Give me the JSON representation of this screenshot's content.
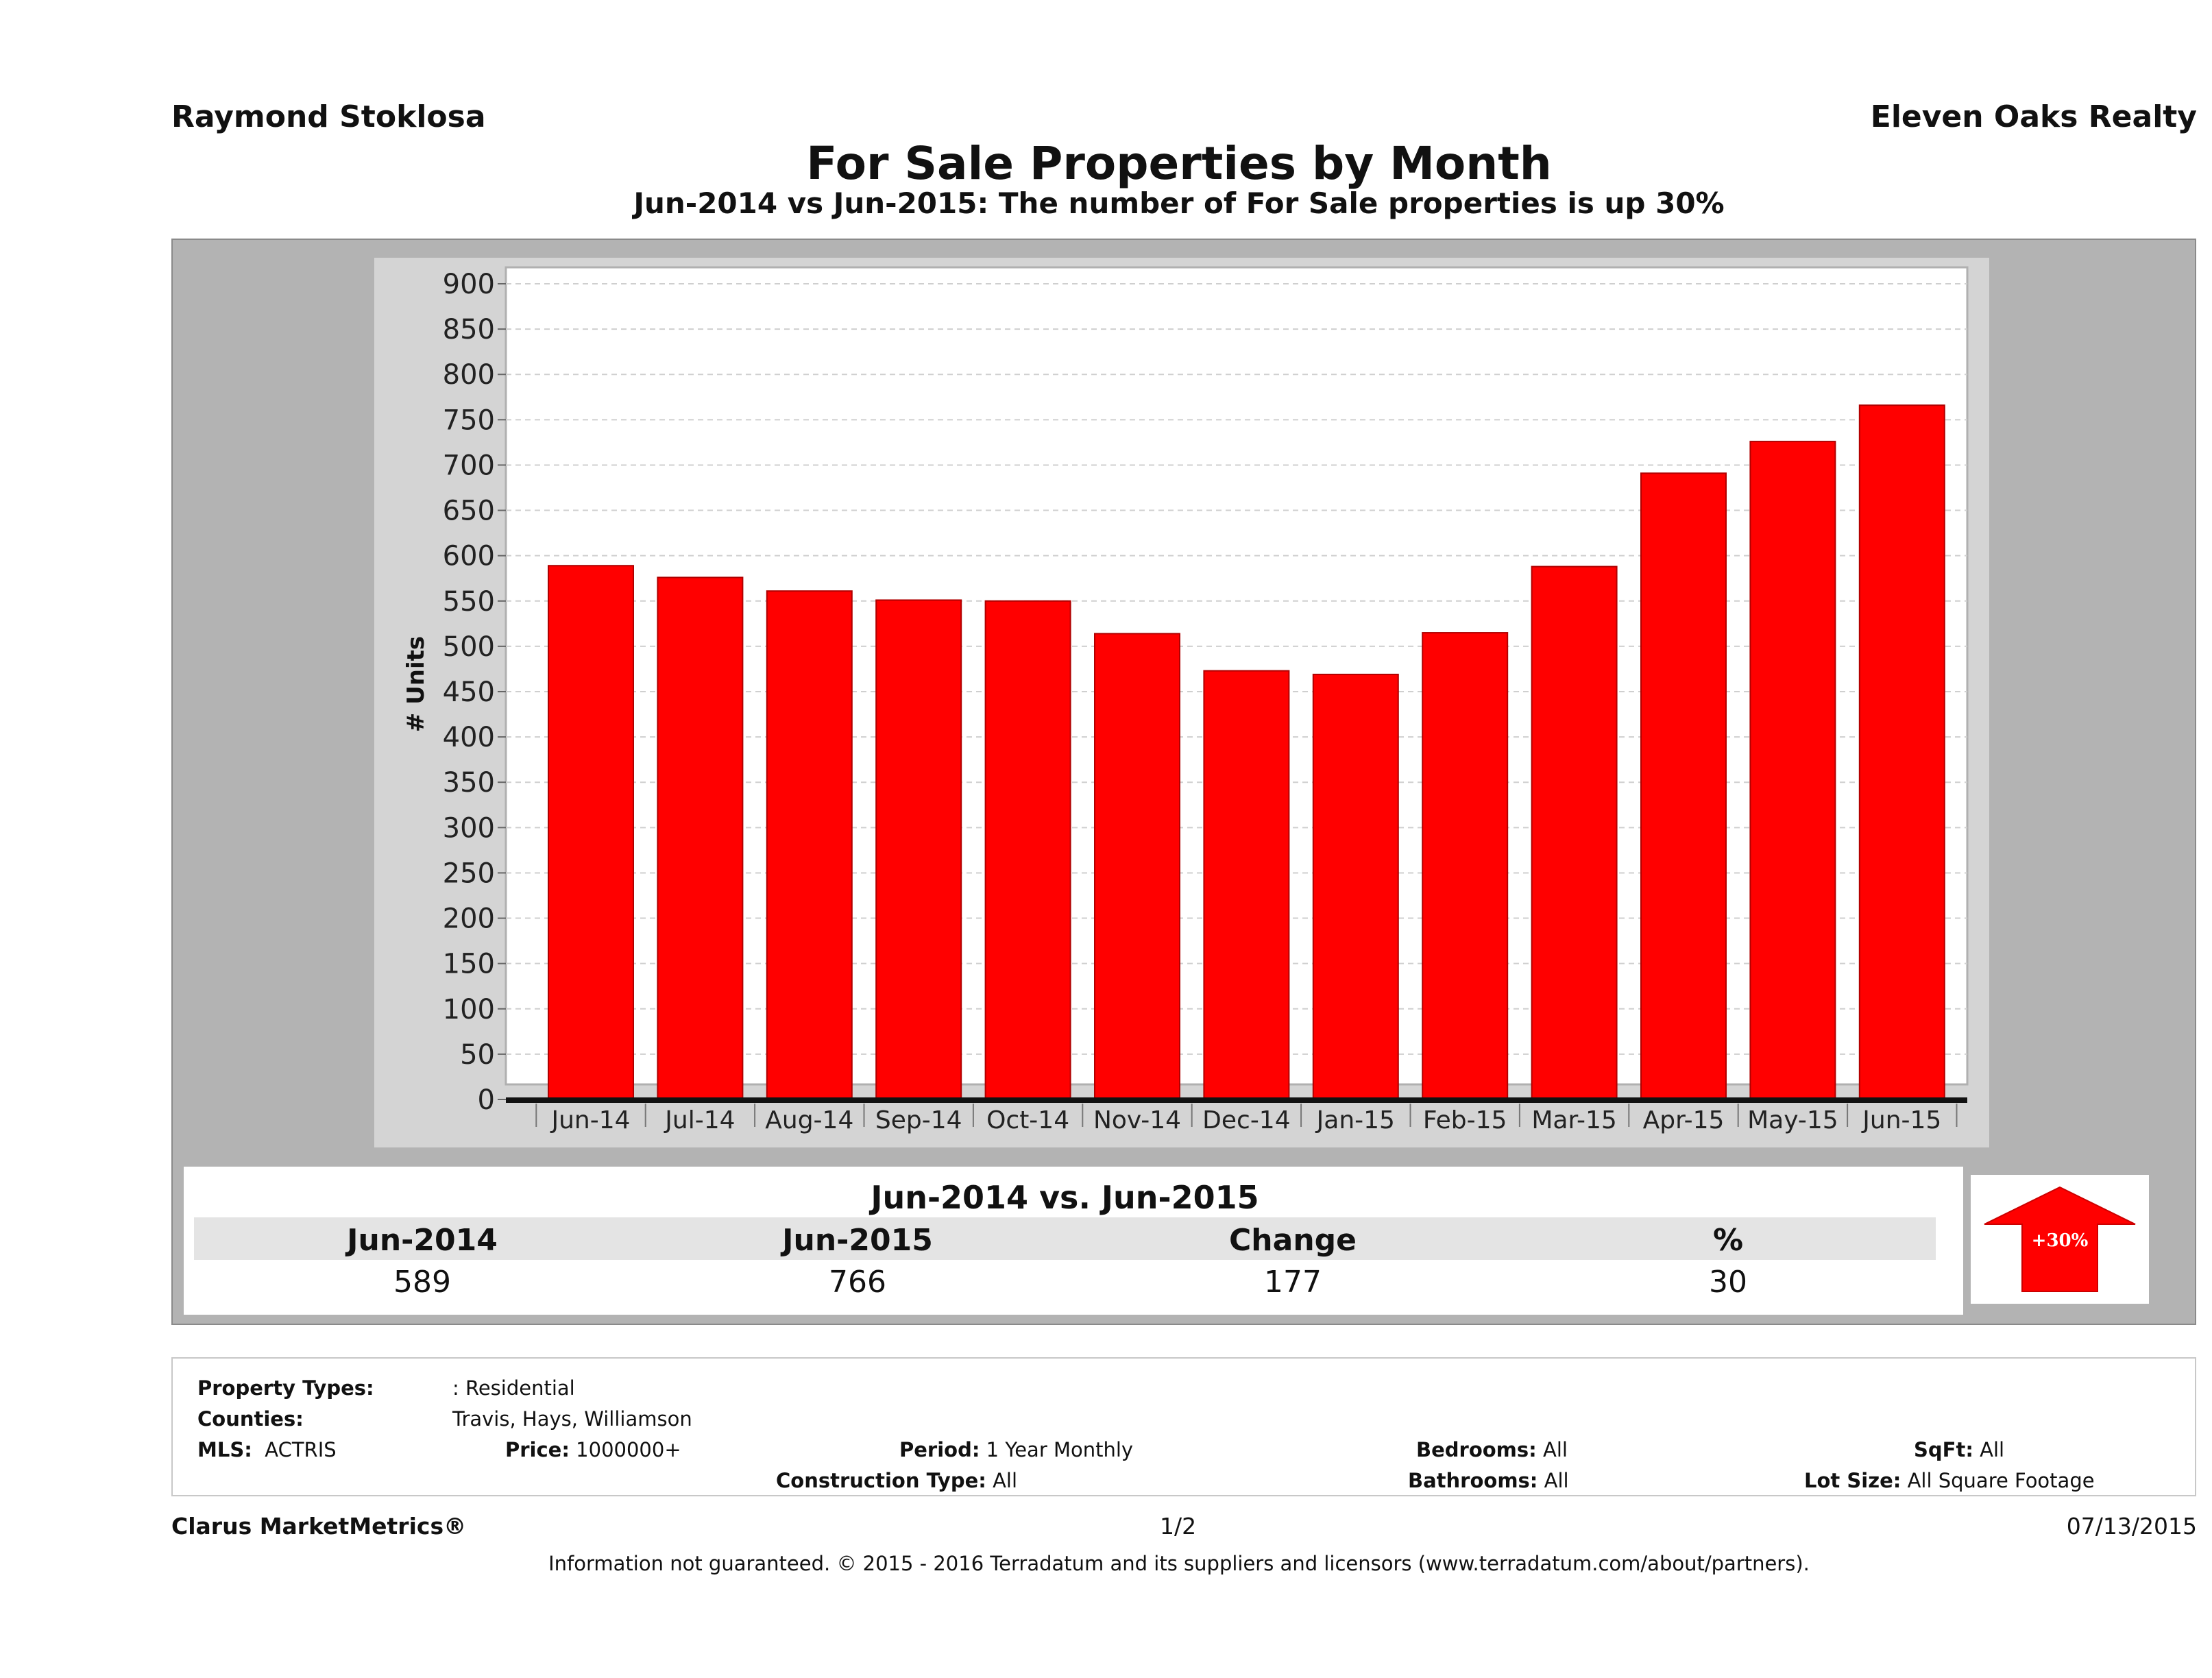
{
  "header": {
    "agent": "Raymond Stoklosa",
    "company": "Eleven Oaks Realty",
    "title": "For Sale Properties by Month",
    "subtitle": "Jun-2014 vs Jun-2015: The number of For Sale  properties is up 30%"
  },
  "chart_data": {
    "type": "bar",
    "categories": [
      "Jun-14",
      "Jul-14",
      "Aug-14",
      "Sep-14",
      "Oct-14",
      "Nov-14",
      "Dec-14",
      "Jan-15",
      "Feb-15",
      "Mar-15",
      "Apr-15",
      "May-15",
      "Jun-15"
    ],
    "values": [
      589,
      576,
      561,
      551,
      550,
      514,
      473,
      469,
      515,
      588,
      691,
      726,
      766
    ],
    "ylabel": "# Units",
    "ylim": [
      0,
      900
    ],
    "yticks": [
      0,
      50,
      100,
      150,
      200,
      250,
      300,
      350,
      400,
      450,
      500,
      550,
      600,
      650,
      700,
      750,
      800,
      850,
      900
    ],
    "grid": true,
    "bar_color": "#ff0000"
  },
  "comparison": {
    "title": "Jun-2014 vs. Jun-2015",
    "headers": [
      "Jun-2014",
      "Jun-2015",
      "Change",
      "%"
    ],
    "values": [
      "589",
      "766",
      "177",
      "30"
    ],
    "badge": "+30%",
    "badge_color": "#ff0000"
  },
  "info": {
    "property_types_label": "Property Types:",
    "property_types_value": ": Residential",
    "counties_label": "Counties:",
    "counties_value": "Travis, Hays, Williamson",
    "mls_label": "MLS:",
    "mls_value": "ACTRIS",
    "price_label": "Price:",
    "price_value": "1000000+",
    "period_label": "Period:",
    "period_value": "1 Year Monthly",
    "construction_label": "Construction Type:",
    "construction_value": "All",
    "bedrooms_label": "Bedrooms:",
    "bedrooms_value": "All",
    "bathrooms_label": "Bathrooms:",
    "bathrooms_value": "All",
    "sqft_label": "SqFt:",
    "sqft_value": "All",
    "lotsize_label": "Lot Size:",
    "lotsize_value": "All Square Footage"
  },
  "footer": {
    "brand": "Clarus MarketMetrics®",
    "page": "1/2",
    "date": "07/13/2015",
    "disclaimer": "Information not guaranteed. © 2015 - 2016 Terradatum and its suppliers and licensors (www.terradatum.com/about/partners)."
  }
}
